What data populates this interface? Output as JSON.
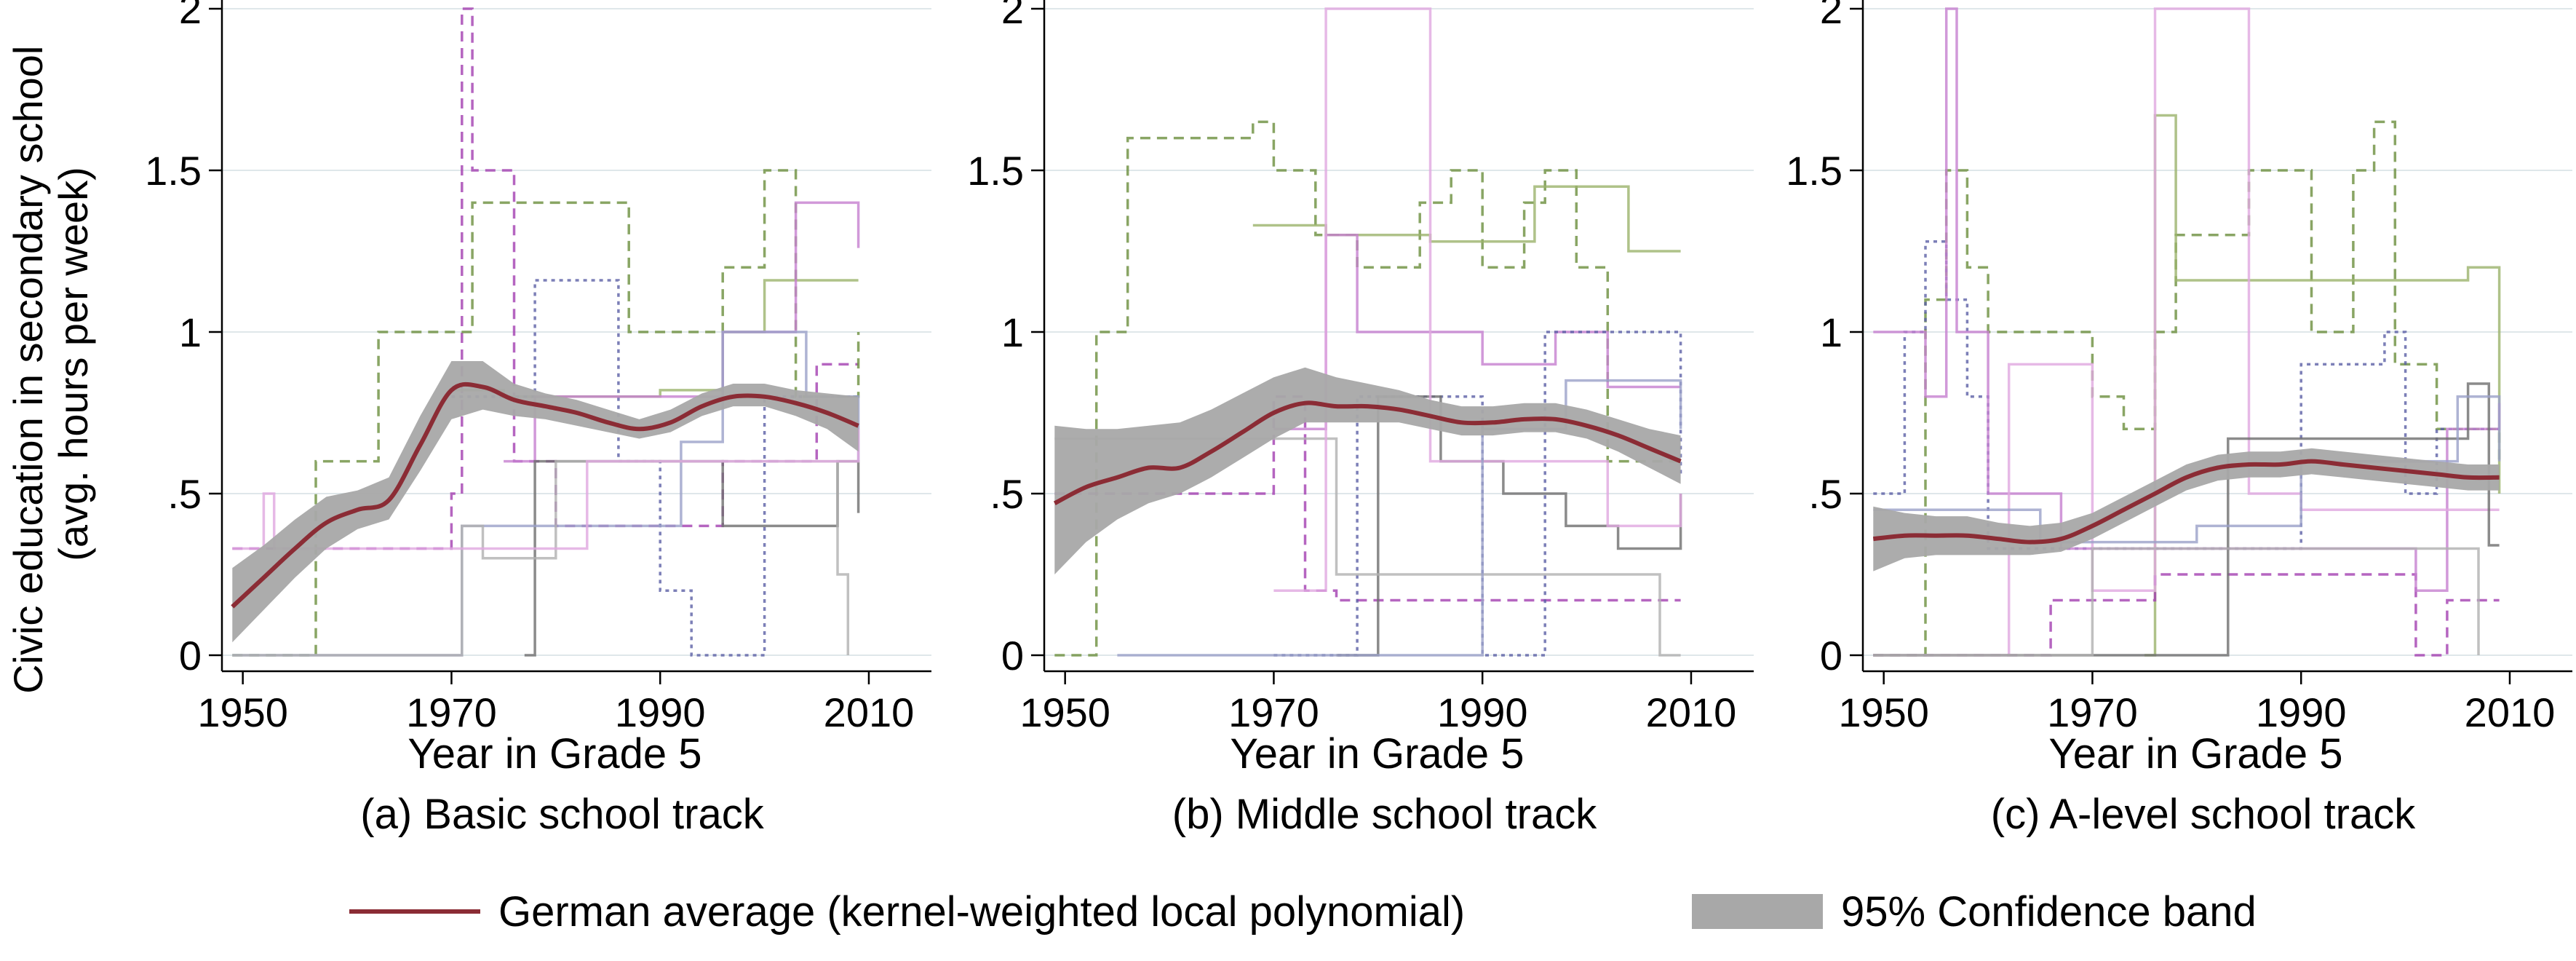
{
  "figure": {
    "ylabel_lines": [
      "Civic education in secondary school",
      "(avg. hours per week)"
    ],
    "legend": {
      "placement": "bottom",
      "entries": [
        {
          "label": "German average (kernel-weighted local polynomial)",
          "kind": "line",
          "color": "#8b2c35"
        },
        {
          "label": "95% Confidence band",
          "kind": "band",
          "color": "#a8a8a8"
        }
      ]
    }
  },
  "chart_data": [
    {
      "type": "line",
      "caption": "(a) Basic school track",
      "xlabel": "Year in Grade 5",
      "xlim": [
        1948,
        2016
      ],
      "ylim": [
        0,
        2
      ],
      "xticks": [
        1950,
        1970,
        1990,
        2010
      ],
      "yticks": [
        {
          "value": 0,
          "label": "0"
        },
        {
          "value": 0.5,
          "label": ".5"
        },
        {
          "value": 1,
          "label": "1"
        },
        {
          "value": 1.5,
          "label": "1.5"
        },
        {
          "value": 2,
          "label": "2"
        }
      ],
      "grid": true,
      "average": {
        "x": [
          1949,
          1952,
          1955,
          1958,
          1961,
          1964,
          1967,
          1970,
          1973,
          1976,
          1979,
          1982,
          1985,
          1988,
          1991,
          1994,
          1997,
          2000,
          2003,
          2006,
          2009
        ],
        "y": [
          0.15,
          0.24,
          0.33,
          0.41,
          0.45,
          0.48,
          0.65,
          0.82,
          0.83,
          0.79,
          0.77,
          0.75,
          0.72,
          0.7,
          0.72,
          0.77,
          0.8,
          0.8,
          0.78,
          0.75,
          0.71
        ],
        "lower": [
          0.04,
          0.14,
          0.24,
          0.33,
          0.39,
          0.42,
          0.57,
          0.73,
          0.76,
          0.74,
          0.73,
          0.71,
          0.69,
          0.67,
          0.69,
          0.74,
          0.77,
          0.77,
          0.74,
          0.7,
          0.63
        ],
        "upper": [
          0.27,
          0.34,
          0.42,
          0.49,
          0.51,
          0.55,
          0.74,
          0.91,
          0.91,
          0.84,
          0.81,
          0.79,
          0.76,
          0.73,
          0.76,
          0.81,
          0.84,
          0.84,
          0.82,
          0.81,
          0.8
        ]
      },
      "states": [
        {
          "color": "#a33eb0",
          "dash": "dash",
          "x": [
            1949,
            1970,
            1971,
            1972,
            1976,
            1980,
            1993,
            1996,
            2005,
            2009
          ],
          "y": [
            0.33,
            0.5,
            2.0,
            1.5,
            0.6,
            0.4,
            0.4,
            0.6,
            0.9,
            0.9
          ]
        },
        {
          "color": "#6b8e3d",
          "dash": "dash",
          "x": [
            1949,
            1953,
            1957,
            1963,
            1972,
            1975,
            1984,
            1987,
            1990,
            1996,
            2000,
            2003,
            2009
          ],
          "y": [
            0.0,
            0.0,
            0.6,
            1.0,
            1.4,
            1.4,
            1.4,
            1.0,
            1.0,
            1.2,
            1.5,
            0.8,
            1.0
          ]
        },
        {
          "color": "#9bb36b",
          "dash": "solid",
          "x": [
            1970,
            1975,
            1982,
            1990,
            1996,
            2000,
            2003,
            2009
          ],
          "y": [
            0.82,
            0.8,
            0.8,
            0.82,
            1.0,
            1.16,
            1.16,
            1.16
          ]
        },
        {
          "color": "#5b5fa5",
          "dash": "dot",
          "x": [
            1970,
            1973,
            1978,
            1986,
            1990,
            1993,
            2000,
            2009
          ],
          "y": [
            0.8,
            0.8,
            1.16,
            0.6,
            0.2,
            0.0,
            0.8,
            0.8
          ]
        },
        {
          "color": "#c57fcf",
          "dash": "solid",
          "x": [
            1975,
            1978,
            1986,
            1990,
            1996,
            2000,
            2003,
            2006,
            2009
          ],
          "y": [
            0.6,
            0.8,
            0.8,
            0.8,
            1.0,
            1.0,
            1.4,
            1.4,
            1.26
          ]
        },
        {
          "color": "#6e6e6e",
          "dash": "solid",
          "x": [
            1977,
            1978,
            1980,
            1990,
            1996,
            2003,
            2007,
            2009
          ],
          "y": [
            0.0,
            0.6,
            0.6,
            0.6,
            0.4,
            0.4,
            0.6,
            0.44
          ]
        },
        {
          "color": "#9aa0c8",
          "dash": "solid",
          "x": [
            1949,
            1965,
            1971,
            1980,
            1992,
            1996,
            2004,
            2009
          ],
          "y": [
            0.0,
            0.0,
            0.4,
            0.4,
            0.66,
            1.0,
            0.8,
            0.6
          ]
        },
        {
          "color": "#b0b0b0",
          "dash": "solid",
          "x": [
            1949,
            1968,
            1971,
            1973,
            1976,
            1980,
            1995,
            2004,
            2007,
            2008
          ],
          "y": [
            0.0,
            0.0,
            0.4,
            0.3,
            0.3,
            0.6,
            0.6,
            0.6,
            0.25,
            0.0
          ]
        },
        {
          "color": "#e0a8e0",
          "dash": "solid",
          "x": [
            1949,
            1952,
            1953,
            1958,
            1965,
            1972,
            1983,
            1996,
            2009
          ],
          "y": [
            0.33,
            0.5,
            0.33,
            0.33,
            0.33,
            0.33,
            0.6,
            0.6,
            0.7
          ]
        }
      ]
    },
    {
      "type": "line",
      "caption": "(b) Middle school track",
      "xlabel": "Year in Grade 5",
      "xlim": [
        1948,
        2016
      ],
      "ylim": [
        0,
        2
      ],
      "xticks": [
        1950,
        1970,
        1990,
        2010
      ],
      "yticks": [
        {
          "value": 0,
          "label": "0"
        },
        {
          "value": 0.5,
          "label": ".5"
        },
        {
          "value": 1,
          "label": "1"
        },
        {
          "value": 1.5,
          "label": "1.5"
        },
        {
          "value": 2,
          "label": "2"
        }
      ],
      "grid": true,
      "average": {
        "x": [
          1949,
          1952,
          1955,
          1958,
          1961,
          1964,
          1967,
          1970,
          1973,
          1976,
          1979,
          1982,
          1985,
          1988,
          1991,
          1994,
          1997,
          2000,
          2003,
          2006,
          2009
        ],
        "y": [
          0.47,
          0.52,
          0.55,
          0.58,
          0.58,
          0.63,
          0.69,
          0.75,
          0.78,
          0.77,
          0.77,
          0.76,
          0.74,
          0.72,
          0.72,
          0.73,
          0.73,
          0.71,
          0.68,
          0.64,
          0.6
        ],
        "lower": [
          0.25,
          0.35,
          0.42,
          0.47,
          0.5,
          0.55,
          0.61,
          0.67,
          0.72,
          0.72,
          0.72,
          0.72,
          0.7,
          0.68,
          0.68,
          0.69,
          0.69,
          0.67,
          0.63,
          0.58,
          0.53
        ],
        "upper": [
          0.71,
          0.7,
          0.7,
          0.71,
          0.72,
          0.76,
          0.81,
          0.86,
          0.89,
          0.86,
          0.84,
          0.82,
          0.79,
          0.77,
          0.77,
          0.78,
          0.78,
          0.76,
          0.73,
          0.7,
          0.68
        ]
      },
      "states": [
        {
          "color": "#6b8e3d",
          "dash": "dash",
          "x": [
            1949,
            1951,
            1953,
            1956,
            1966,
            1968,
            1970,
            1974,
            1978,
            1984,
            1987,
            1990,
            1994,
            1996,
            1999,
            2002,
            2009
          ],
          "y": [
            0.0,
            0.0,
            1.0,
            1.6,
            1.6,
            1.65,
            1.5,
            1.3,
            1.2,
            1.4,
            1.5,
            1.2,
            1.4,
            1.5,
            1.2,
            0.6,
            0.6
          ]
        },
        {
          "color": "#9bb36b",
          "dash": "solid",
          "x": [
            1968,
            1975,
            1985,
            1990,
            1995,
            2000,
            2004,
            2009
          ],
          "y": [
            1.33,
            1.3,
            1.28,
            1.28,
            1.45,
            1.45,
            1.25,
            1.25
          ]
        },
        {
          "color": "#a33eb0",
          "dash": "dash",
          "x": [
            1949,
            1970,
            1973,
            1976,
            1986,
            2000,
            2009
          ],
          "y": [
            0.5,
            0.8,
            0.2,
            0.17,
            0.17,
            0.17,
            0.17
          ]
        },
        {
          "color": "#c57fcf",
          "dash": "solid",
          "x": [
            1970,
            1975,
            1978,
            1986,
            1990,
            1997,
            2002,
            2009
          ],
          "y": [
            0.7,
            1.3,
            1.0,
            1.0,
            0.9,
            1.0,
            0.83,
            0.83
          ]
        },
        {
          "color": "#5b5fa5",
          "dash": "dot",
          "x": [
            1970,
            1977,
            1978,
            1985,
            1990,
            1996,
            2003,
            2009
          ],
          "y": [
            0.0,
            0.0,
            0.8,
            0.8,
            0.0,
            1.0,
            1.0,
            0.55
          ]
        },
        {
          "color": "#6e6e6e",
          "dash": "solid",
          "x": [
            1976,
            1980,
            1986,
            1992,
            1998,
            2003,
            2009
          ],
          "y": [
            0.0,
            0.8,
            0.6,
            0.5,
            0.4,
            0.33,
            0.5
          ]
        },
        {
          "color": "#b0b0b0",
          "dash": "solid",
          "x": [
            1949,
            1970,
            1976,
            1986,
            1995,
            2004,
            2007,
            2009
          ],
          "y": [
            0.67,
            0.67,
            0.25,
            0.25,
            0.25,
            0.25,
            0.0,
            0.0
          ]
        },
        {
          "color": "#e0a8e0",
          "dash": "solid",
          "x": [
            1970,
            1975,
            1985,
            1995,
            2002,
            2009
          ],
          "y": [
            0.2,
            2.0,
            0.6,
            0.6,
            0.4,
            0.5
          ]
        },
        {
          "color": "#9aa0c8",
          "dash": "solid",
          "x": [
            1955,
            1965,
            1975,
            1980,
            1990,
            1998,
            2009
          ],
          "y": [
            0.0,
            0.0,
            0.0,
            0.0,
            0.7,
            0.85,
            0.7
          ]
        }
      ]
    },
    {
      "type": "line",
      "caption": "(c) A-level school track",
      "xlabel": "Year in Grade 5",
      "xlim": [
        1948,
        2016
      ],
      "ylim": [
        0,
        2
      ],
      "xticks": [
        1950,
        1970,
        1990,
        2010
      ],
      "yticks": [
        {
          "value": 0,
          "label": "0"
        },
        {
          "value": 0.5,
          "label": ".5"
        },
        {
          "value": 1,
          "label": "1"
        },
        {
          "value": 1.5,
          "label": "1.5"
        },
        {
          "value": 2,
          "label": "2"
        }
      ],
      "grid": true,
      "average": {
        "x": [
          1949,
          1952,
          1955,
          1958,
          1961,
          1964,
          1967,
          1970,
          1973,
          1976,
          1979,
          1982,
          1985,
          1988,
          1991,
          1994,
          1997,
          2000,
          2003,
          2006,
          2009
        ],
        "y": [
          0.36,
          0.37,
          0.37,
          0.37,
          0.36,
          0.35,
          0.36,
          0.4,
          0.45,
          0.5,
          0.55,
          0.58,
          0.59,
          0.59,
          0.6,
          0.59,
          0.58,
          0.57,
          0.56,
          0.55,
          0.55
        ],
        "lower": [
          0.26,
          0.3,
          0.31,
          0.31,
          0.31,
          0.31,
          0.32,
          0.36,
          0.41,
          0.46,
          0.51,
          0.54,
          0.55,
          0.55,
          0.56,
          0.55,
          0.54,
          0.53,
          0.52,
          0.51,
          0.51
        ],
        "upper": [
          0.46,
          0.44,
          0.43,
          0.43,
          0.41,
          0.4,
          0.41,
          0.44,
          0.49,
          0.54,
          0.59,
          0.62,
          0.63,
          0.63,
          0.64,
          0.63,
          0.62,
          0.61,
          0.6,
          0.59,
          0.59
        ]
      },
      "states": [
        {
          "color": "#6b8e3d",
          "dash": "dash",
          "x": [
            1949,
            1951,
            1954,
            1956,
            1958,
            1960,
            1968,
            1970,
            1973,
            1976,
            1978,
            1982,
            1985,
            1988,
            1991,
            1995,
            1997,
            1999,
            2003,
            2009
          ],
          "y": [
            0.0,
            0.0,
            1.1,
            1.5,
            1.2,
            1.0,
            1.0,
            0.8,
            0.7,
            1.0,
            1.3,
            1.3,
            1.5,
            1.5,
            1.0,
            1.5,
            1.65,
            0.9,
            0.7,
            0.6
          ]
        },
        {
          "color": "#9bb36b",
          "dash": "solid",
          "x": [
            1975,
            1976,
            1978,
            1985,
            1995,
            2003,
            2006,
            2009
          ],
          "y": [
            0.0,
            1.67,
            1.16,
            1.16,
            1.16,
            1.16,
            1.2,
            0.5
          ]
        },
        {
          "color": "#5b5fa5",
          "dash": "dot",
          "x": [
            1949,
            1952,
            1954,
            1956,
            1958,
            1960,
            1970,
            1990,
            1998,
            2000,
            2003,
            2009
          ],
          "y": [
            0.5,
            1.0,
            1.28,
            1.1,
            0.8,
            0.33,
            0.33,
            0.9,
            1.0,
            0.5,
            0.7,
            0.7
          ]
        },
        {
          "color": "#a33eb0",
          "dash": "dash",
          "x": [
            1949,
            1962,
            1966,
            1976,
            1985,
            1999,
            2001,
            2004,
            2009
          ],
          "y": [
            0.0,
            0.0,
            0.17,
            0.25,
            0.25,
            0.25,
            0.0,
            0.17,
            0.17
          ]
        },
        {
          "color": "#c57fcf",
          "dash": "solid",
          "x": [
            1949,
            1954,
            1956,
            1957,
            1960,
            1967,
            1980,
            1995,
            2001,
            2004,
            2009
          ],
          "y": [
            1.0,
            0.8,
            2.0,
            1.0,
            0.5,
            0.33,
            0.33,
            0.33,
            0.2,
            0.7,
            0.78
          ]
        },
        {
          "color": "#e0a8e0",
          "dash": "solid",
          "x": [
            1949,
            1960,
            1962,
            1967,
            1970,
            1976,
            1985,
            1990,
            2009
          ],
          "y": [
            0.0,
            0.0,
            0.9,
            0.9,
            0.2,
            2.0,
            0.5,
            0.45,
            0.45
          ]
        },
        {
          "color": "#6e6e6e",
          "dash": "solid",
          "x": [
            1949,
            1970,
            1976,
            1983,
            1990,
            2000,
            2006,
            2008,
            2009
          ],
          "y": [
            0.0,
            0.0,
            0.0,
            0.67,
            0.67,
            0.67,
            0.84,
            0.34,
            0.34
          ]
        },
        {
          "color": "#b0b0b0",
          "dash": "solid",
          "x": [
            1949,
            1965,
            1970,
            1975,
            1985,
            1995,
            2003,
            2006,
            2007
          ],
          "y": [
            0.0,
            0.0,
            0.33,
            0.33,
            0.33,
            0.33,
            0.33,
            0.33,
            0.0
          ]
        },
        {
          "color": "#9aa0c8",
          "dash": "solid",
          "x": [
            1949,
            1965,
            1972,
            1980,
            1990,
            2000,
            2005,
            2009
          ],
          "y": [
            0.45,
            0.35,
            0.35,
            0.4,
            0.6,
            0.6,
            0.8,
            0.6
          ]
        }
      ]
    }
  ]
}
